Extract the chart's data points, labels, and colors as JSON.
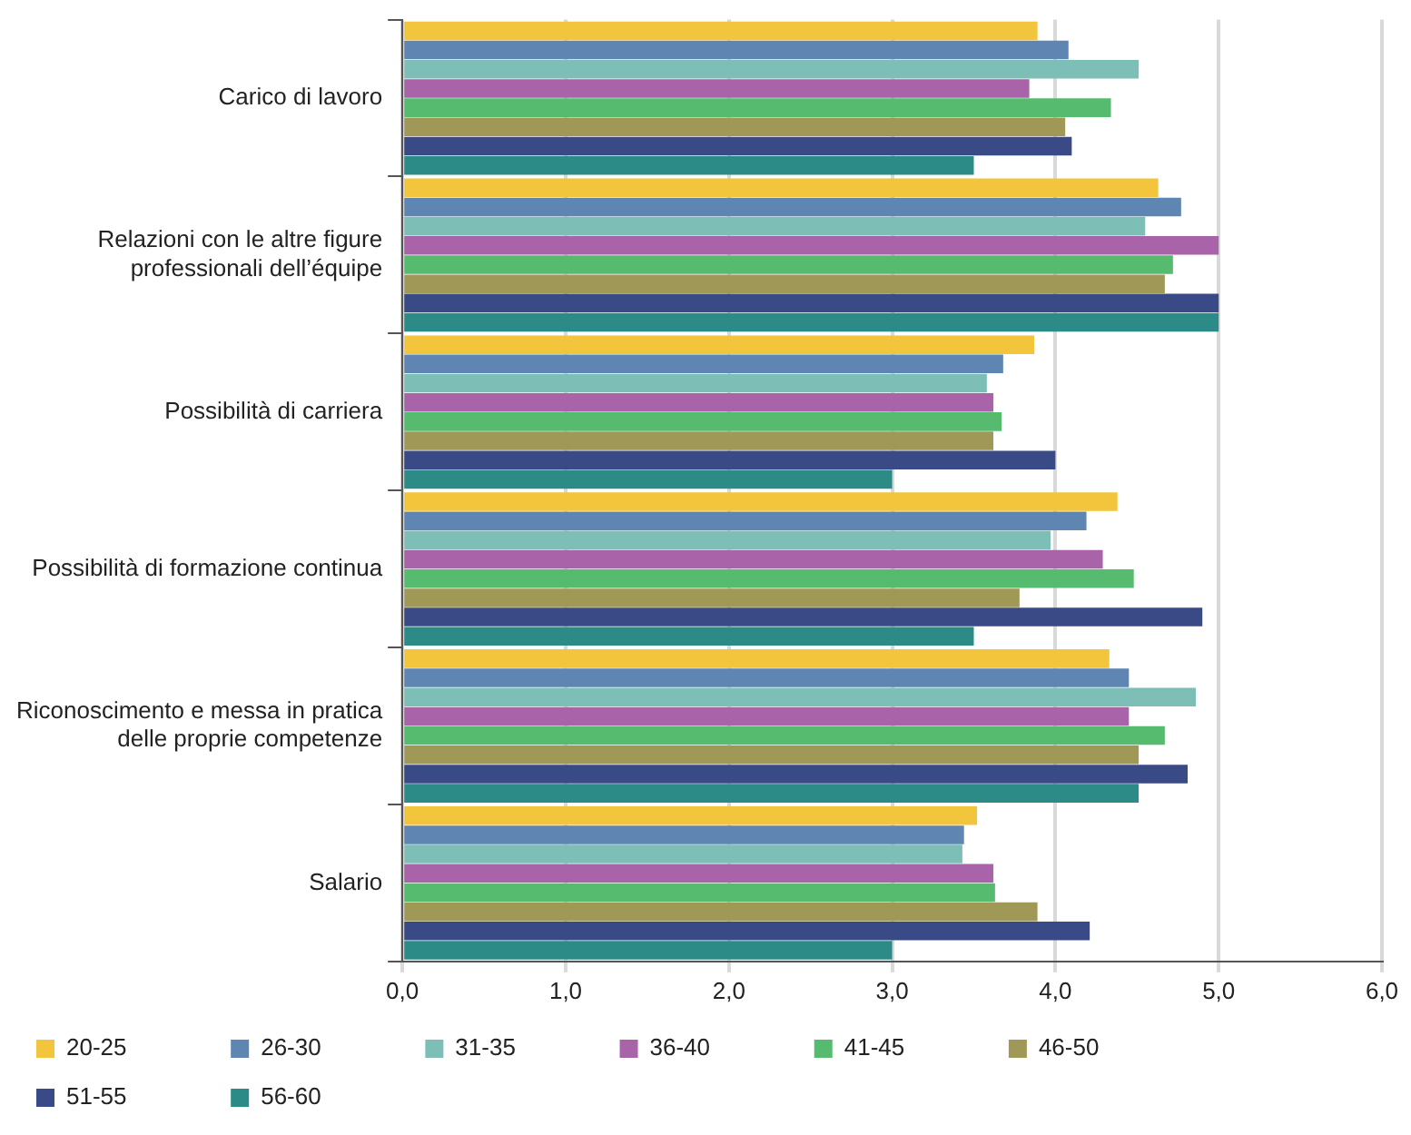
{
  "chart_data": {
    "type": "bar",
    "orientation": "horizontal",
    "categories": [
      "Carico di lavoro",
      "Relazioni con le altre figure professionali dell’équipe",
      "Possibilità di carriera",
      "Possibilità di formazione continua",
      "Riconoscimento e messa in pratica delle proprie competenze",
      "Salario"
    ],
    "series": [
      {
        "name": "20-25",
        "color": "#f2c53d",
        "values": [
          3.89,
          4.63,
          3.87,
          4.38,
          4.33,
          3.52
        ]
      },
      {
        "name": "26-30",
        "color": "#5f86b3",
        "values": [
          4.08,
          4.77,
          3.68,
          4.19,
          4.45,
          3.44
        ]
      },
      {
        "name": "31-35",
        "color": "#7dbfb7",
        "values": [
          4.51,
          4.55,
          3.58,
          3.97,
          4.86,
          3.43
        ]
      },
      {
        "name": "36-40",
        "color": "#a963a8",
        "values": [
          3.84,
          5.0,
          3.62,
          4.29,
          4.45,
          3.62
        ]
      },
      {
        "name": "41-45",
        "color": "#56bb6f",
        "values": [
          4.34,
          4.72,
          3.67,
          4.48,
          4.67,
          3.63
        ]
      },
      {
        "name": "46-50",
        "color": "#a09856",
        "values": [
          4.06,
          4.67,
          3.62,
          3.78,
          4.51,
          3.89
        ]
      },
      {
        "name": "51-55",
        "color": "#3a4a87",
        "values": [
          4.1,
          5.0,
          4.0,
          4.9,
          4.81,
          4.21
        ]
      },
      {
        "name": "56-60",
        "color": "#2c8a87",
        "values": [
          3.5,
          5.0,
          3.0,
          3.5,
          4.51,
          3.0
        ]
      }
    ],
    "xlim": [
      0,
      6
    ],
    "xticks": [
      {
        "value": 0,
        "label": "0,0"
      },
      {
        "value": 1,
        "label": "1,0"
      },
      {
        "value": 2,
        "label": "2,0"
      },
      {
        "value": 3,
        "label": "3,0"
      },
      {
        "value": 4,
        "label": "4,0"
      },
      {
        "value": 5,
        "label": "5,0"
      },
      {
        "value": 6,
        "label": "6,0"
      }
    ],
    "grid": "x",
    "legend": "bottom left"
  }
}
